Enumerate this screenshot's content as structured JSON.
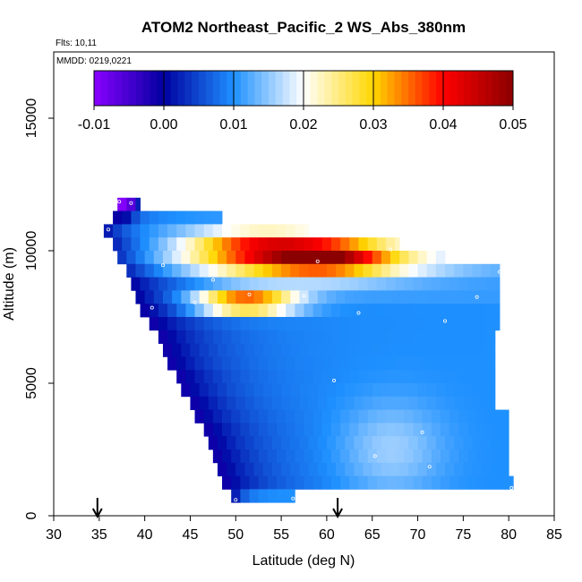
{
  "chart_data": {
    "type": "heatmap",
    "title": "ATOM2 Northeast_Pacific_2 WS_Abs_380nm",
    "flights_label": "Flts: 10,11",
    "date_label": "MMDD: 0219,0221",
    "xlabel": "Latitude (deg N)",
    "ylabel": "Altitude (m)",
    "xlim": [
      30,
      85
    ],
    "ylim": [
      0,
      17500
    ],
    "xticks": [
      "30",
      "35",
      "40",
      "45",
      "50",
      "55",
      "60",
      "65",
      "70",
      "75",
      "80",
      "85"
    ],
    "yticks": [
      "0",
      "5000",
      "10000",
      "15000"
    ],
    "ytick_values": [
      0,
      5000,
      10000,
      15000
    ],
    "colorbar": {
      "min": -0.01,
      "max": 0.05,
      "tick_labels": [
        "-0.01",
        "0.00",
        "0.01",
        "0.02",
        "0.03",
        "0.04",
        "0.05"
      ],
      "tick_values": [
        -0.01,
        0.0,
        0.01,
        0.02,
        0.03,
        0.04,
        0.05
      ],
      "colors": [
        "#8b00ff",
        "#0000a0",
        "#1e90ff",
        "#ffffff",
        "#ffd700",
        "#ff0000",
        "#8b0000"
      ]
    },
    "arrows_at_latitude": [
      34.8,
      61.2
    ],
    "rows": [
      {
        "alt_bottom": 11500,
        "alt_top": 12000,
        "lat_start": 37.0,
        "lat_end": 39.5,
        "base": 0.005
      },
      {
        "alt_bottom": 11000,
        "alt_top": 11500,
        "lat_start": 36.5,
        "lat_end": 48.5,
        "base": 0.01
      },
      {
        "alt_bottom": 10500,
        "alt_top": 11000,
        "lat_start": 35.5,
        "lat_end": 58.0,
        "base": 0.012
      },
      {
        "alt_bottom": 10000,
        "alt_top": 10500,
        "lat_start": 36.5,
        "lat_end": 68.0,
        "base": 0.012
      },
      {
        "alt_bottom": 9500,
        "alt_top": 10000,
        "lat_start": 37.0,
        "lat_end": 73.0,
        "base": 0.012
      },
      {
        "alt_bottom": 9000,
        "alt_top": 9500,
        "lat_start": 38.0,
        "lat_end": 79.0,
        "base": 0.012
      },
      {
        "alt_bottom": 8500,
        "alt_top": 9000,
        "lat_start": 38.5,
        "lat_end": 79.0,
        "base": 0.011
      },
      {
        "alt_bottom": 8000,
        "alt_top": 8500,
        "lat_start": 39.0,
        "lat_end": 79.0,
        "base": 0.011
      },
      {
        "alt_bottom": 7500,
        "alt_top": 8000,
        "lat_start": 39.5,
        "lat_end": 79.0,
        "base": 0.01
      },
      {
        "alt_bottom": 7000,
        "alt_top": 7500,
        "lat_start": 40.5,
        "lat_end": 79.0,
        "base": 0.01
      },
      {
        "alt_bottom": 6500,
        "alt_top": 7000,
        "lat_start": 41.5,
        "lat_end": 78.5,
        "base": 0.01
      },
      {
        "alt_bottom": 6000,
        "alt_top": 6500,
        "lat_start": 42.0,
        "lat_end": 78.5,
        "base": 0.01
      },
      {
        "alt_bottom": 5500,
        "alt_top": 6000,
        "lat_start": 42.5,
        "lat_end": 78.5,
        "base": 0.01
      },
      {
        "alt_bottom": 5000,
        "alt_top": 5500,
        "lat_start": 43.5,
        "lat_end": 78.5,
        "base": 0.01
      },
      {
        "alt_bottom": 4500,
        "alt_top": 5000,
        "lat_start": 44.0,
        "lat_end": 78.5,
        "base": 0.01
      },
      {
        "alt_bottom": 4000,
        "alt_top": 4500,
        "lat_start": 45.0,
        "lat_end": 78.5,
        "base": 0.01
      },
      {
        "alt_bottom": 3500,
        "alt_top": 4000,
        "lat_start": 45.5,
        "lat_end": 80.0,
        "base": 0.01
      },
      {
        "alt_bottom": 3000,
        "alt_top": 3500,
        "lat_start": 46.5,
        "lat_end": 80.0,
        "base": 0.01
      },
      {
        "alt_bottom": 2500,
        "alt_top": 3000,
        "lat_start": 47.0,
        "lat_end": 80.0,
        "base": 0.01
      },
      {
        "alt_bottom": 2000,
        "alt_top": 2500,
        "lat_start": 47.5,
        "lat_end": 80.0,
        "base": 0.01
      },
      {
        "alt_bottom": 1500,
        "alt_top": 2000,
        "lat_start": 48.0,
        "lat_end": 80.0,
        "base": 0.01
      },
      {
        "alt_bottom": 1000,
        "alt_top": 1500,
        "lat_start": 48.5,
        "lat_end": 80.5,
        "base": 0.01
      },
      {
        "alt_bottom": 500,
        "alt_top": 1000,
        "lat_start": 49.5,
        "lat_end": 56.5,
        "base": 0.01
      }
    ],
    "plumes": [
      {
        "lat": 57.0,
        "alt": 9750,
        "lat_sigma": 9,
        "alt_sigma": 550,
        "amp": 0.03
      },
      {
        "lat": 60.0,
        "alt": 9750,
        "lat_sigma": 4,
        "alt_sigma": 380,
        "amp": 0.012
      },
      {
        "lat": 51.0,
        "alt": 8050,
        "lat_sigma": 4,
        "alt_sigma": 280,
        "amp": 0.033
      },
      {
        "lat": 52.0,
        "alt": 10300,
        "lat_sigma": 5,
        "alt_sigma": 350,
        "amp": 0.012
      },
      {
        "lat": 67.0,
        "alt": 2500,
        "lat_sigma": 4,
        "alt_sigma": 1300,
        "amp": 0.006
      },
      {
        "lat": 38.0,
        "alt": 11750,
        "lat_sigma": 0.7,
        "alt_sigma": 300,
        "amp": -0.014
      }
    ],
    "samples": [
      {
        "lat": 37.2,
        "alt": 11850
      },
      {
        "lat": 38.5,
        "alt": 11800
      },
      {
        "lat": 36.0,
        "alt": 10800
      },
      {
        "lat": 67.0,
        "alt": 10050
      },
      {
        "lat": 59.0,
        "alt": 9600
      },
      {
        "lat": 42.0,
        "alt": 9450
      },
      {
        "lat": 79.0,
        "alt": 9200
      },
      {
        "lat": 47.5,
        "alt": 8900
      },
      {
        "lat": 51.5,
        "alt": 8350
      },
      {
        "lat": 57.5,
        "alt": 8300
      },
      {
        "lat": 76.5,
        "alt": 8250
      },
      {
        "lat": 45.5,
        "alt": 8050
      },
      {
        "lat": 40.8,
        "alt": 7850
      },
      {
        "lat": 63.5,
        "alt": 7650
      },
      {
        "lat": 73.0,
        "alt": 7350
      },
      {
        "lat": 60.8,
        "alt": 5100
      },
      {
        "lat": 70.5,
        "alt": 3150
      },
      {
        "lat": 65.3,
        "alt": 2250
      },
      {
        "lat": 71.3,
        "alt": 1850
      },
      {
        "lat": 80.3,
        "alt": 1050
      },
      {
        "lat": 56.3,
        "alt": 650
      },
      {
        "lat": 50.0,
        "alt": 600
      }
    ]
  }
}
